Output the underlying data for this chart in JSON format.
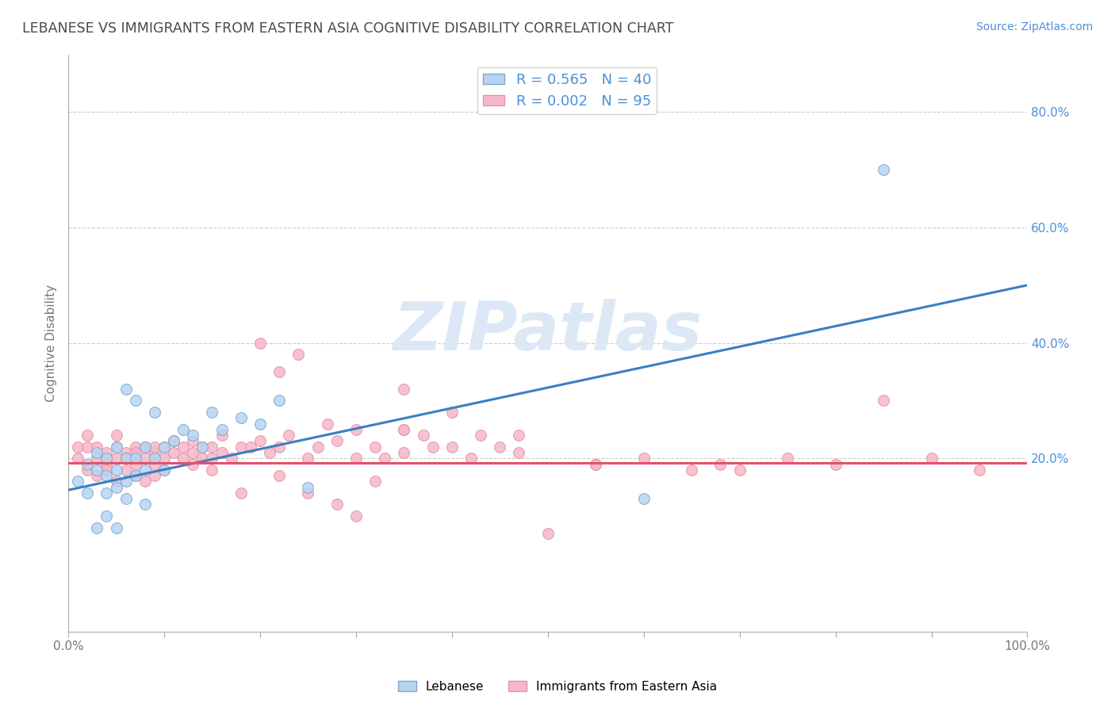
{
  "title": "LEBANESE VS IMMIGRANTS FROM EASTERN ASIA COGNITIVE DISABILITY CORRELATION CHART",
  "source": "Source: ZipAtlas.com",
  "ylabel": "Cognitive Disability",
  "watermark": "ZIPatlas",
  "legend_blue_r": "R = 0.565",
  "legend_blue_n": "N = 40",
  "legend_pink_r": "R = 0.002",
  "legend_pink_n": "N = 95",
  "legend_label_blue": "Lebanese",
  "legend_label_pink": "Immigrants from Eastern Asia",
  "xlim": [
    0.0,
    1.0
  ],
  "ylim": [
    -0.1,
    0.9
  ],
  "right_yticks": [
    0.2,
    0.4,
    0.6,
    0.8
  ],
  "right_yticklabels": [
    "20.0%",
    "40.0%",
    "60.0%",
    "80.0%"
  ],
  "xticks": [
    0.0,
    0.1,
    0.2,
    0.3,
    0.4,
    0.5,
    0.6,
    0.7,
    0.8,
    0.9,
    1.0
  ],
  "xticklabels": [
    "0.0%",
    "",
    "",
    "",
    "",
    "",
    "",
    "",
    "",
    "",
    "100.0%"
  ],
  "title_color": "#4a4a4a",
  "source_color": "#4a90d9",
  "scatter_blue_color": "#b8d4f0",
  "scatter_blue_edge": "#7aaad4",
  "scatter_pink_color": "#f5b8c8",
  "scatter_pink_edge": "#e890a8",
  "line_blue_color": "#3a7fc1",
  "line_pink_color": "#e8506a",
  "grid_color": "#cccccc",
  "background_color": "#ffffff",
  "watermark_color": "#dce8f5",
  "blue_scatter_x": [
    0.01,
    0.02,
    0.02,
    0.03,
    0.03,
    0.03,
    0.04,
    0.04,
    0.04,
    0.04,
    0.05,
    0.05,
    0.05,
    0.05,
    0.06,
    0.06,
    0.06,
    0.06,
    0.07,
    0.07,
    0.07,
    0.08,
    0.08,
    0.08,
    0.09,
    0.09,
    0.1,
    0.1,
    0.11,
    0.12,
    0.13,
    0.14,
    0.15,
    0.16,
    0.18,
    0.2,
    0.22,
    0.25,
    0.6,
    0.85
  ],
  "blue_scatter_y": [
    0.16,
    0.19,
    0.14,
    0.18,
    0.21,
    0.08,
    0.17,
    0.2,
    0.14,
    0.1,
    0.15,
    0.18,
    0.22,
    0.08,
    0.16,
    0.2,
    0.13,
    0.32,
    0.17,
    0.2,
    0.3,
    0.18,
    0.22,
    0.12,
    0.2,
    0.28,
    0.22,
    0.18,
    0.23,
    0.25,
    0.24,
    0.22,
    0.28,
    0.25,
    0.27,
    0.26,
    0.3,
    0.15,
    0.13,
    0.7
  ],
  "pink_scatter_x": [
    0.01,
    0.01,
    0.02,
    0.02,
    0.02,
    0.03,
    0.03,
    0.03,
    0.04,
    0.04,
    0.04,
    0.05,
    0.05,
    0.05,
    0.05,
    0.06,
    0.06,
    0.06,
    0.07,
    0.07,
    0.07,
    0.07,
    0.08,
    0.08,
    0.08,
    0.09,
    0.09,
    0.09,
    0.09,
    0.1,
    0.1,
    0.1,
    0.11,
    0.11,
    0.12,
    0.12,
    0.13,
    0.13,
    0.13,
    0.14,
    0.14,
    0.15,
    0.15,
    0.15,
    0.16,
    0.16,
    0.17,
    0.18,
    0.19,
    0.2,
    0.2,
    0.21,
    0.22,
    0.22,
    0.23,
    0.24,
    0.25,
    0.26,
    0.27,
    0.28,
    0.3,
    0.3,
    0.32,
    0.33,
    0.35,
    0.35,
    0.37,
    0.38,
    0.4,
    0.42,
    0.43,
    0.45,
    0.47,
    0.5,
    0.35,
    0.25,
    0.28,
    0.32,
    0.55,
    0.3,
    0.18,
    0.22,
    0.35,
    0.47,
    0.55,
    0.4,
    0.6,
    0.65,
    0.68,
    0.7,
    0.75,
    0.8,
    0.85,
    0.9,
    0.95
  ],
  "pink_scatter_y": [
    0.2,
    0.22,
    0.18,
    0.22,
    0.24,
    0.17,
    0.2,
    0.22,
    0.19,
    0.21,
    0.18,
    0.2,
    0.22,
    0.24,
    0.16,
    0.18,
    0.21,
    0.2,
    0.22,
    0.19,
    0.21,
    0.17,
    0.2,
    0.22,
    0.16,
    0.21,
    0.19,
    0.22,
    0.17,
    0.22,
    0.2,
    0.18,
    0.21,
    0.23,
    0.2,
    0.22,
    0.21,
    0.19,
    0.23,
    0.22,
    0.2,
    0.22,
    0.2,
    0.18,
    0.24,
    0.21,
    0.2,
    0.22,
    0.22,
    0.4,
    0.23,
    0.21,
    0.35,
    0.22,
    0.24,
    0.38,
    0.2,
    0.22,
    0.26,
    0.23,
    0.2,
    0.25,
    0.22,
    0.2,
    0.32,
    0.21,
    0.24,
    0.22,
    0.22,
    0.2,
    0.24,
    0.22,
    0.21,
    0.07,
    0.25,
    0.14,
    0.12,
    0.16,
    0.19,
    0.1,
    0.14,
    0.17,
    0.25,
    0.24,
    0.19,
    0.28,
    0.2,
    0.18,
    0.19,
    0.18,
    0.2,
    0.19,
    0.3,
    0.2,
    0.18
  ],
  "blue_line_x": [
    0.0,
    1.0
  ],
  "blue_line_y": [
    0.145,
    0.5
  ],
  "pink_line_x": [
    0.0,
    1.0
  ],
  "pink_line_y": [
    0.192,
    0.192
  ],
  "figsize": [
    14.06,
    8.92
  ],
  "dpi": 100
}
